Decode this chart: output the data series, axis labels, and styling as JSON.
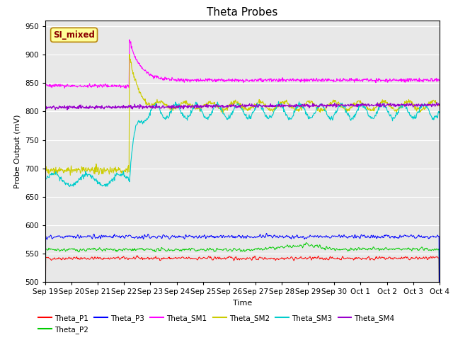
{
  "title": "Theta Probes",
  "xlabel": "Time",
  "ylabel": "Probe Output (mV)",
  "ylim": [
    500,
    960
  ],
  "yticks": [
    500,
    550,
    600,
    650,
    700,
    750,
    800,
    850,
    900,
    950
  ],
  "x_labels": [
    "Sep 19",
    "Sep 20",
    "Sep 21",
    "Sep 22",
    "Sep 23",
    "Sep 24",
    "Sep 25",
    "Sep 26",
    "Sep 27",
    "Sep 28",
    "Sep 29",
    "Sep 30",
    "Oct 1",
    "Oct 2",
    "Oct 3",
    "Oct 4"
  ],
  "annotation_text": "SI_mixed",
  "annotation_color": "#8B0000",
  "annotation_bg": "#FFFF99",
  "bg_color": "#E8E8E8",
  "colors": {
    "Theta_P1": "#FF0000",
    "Theta_P2": "#00CC00",
    "Theta_P3": "#0000FF",
    "Theta_SM1": "#FF00FF",
    "Theta_SM2": "#CCCC00",
    "Theta_SM3": "#00CCCC",
    "Theta_SM4": "#9900CC"
  },
  "n_points": 900,
  "seed": 42,
  "spike_day": 3.2
}
